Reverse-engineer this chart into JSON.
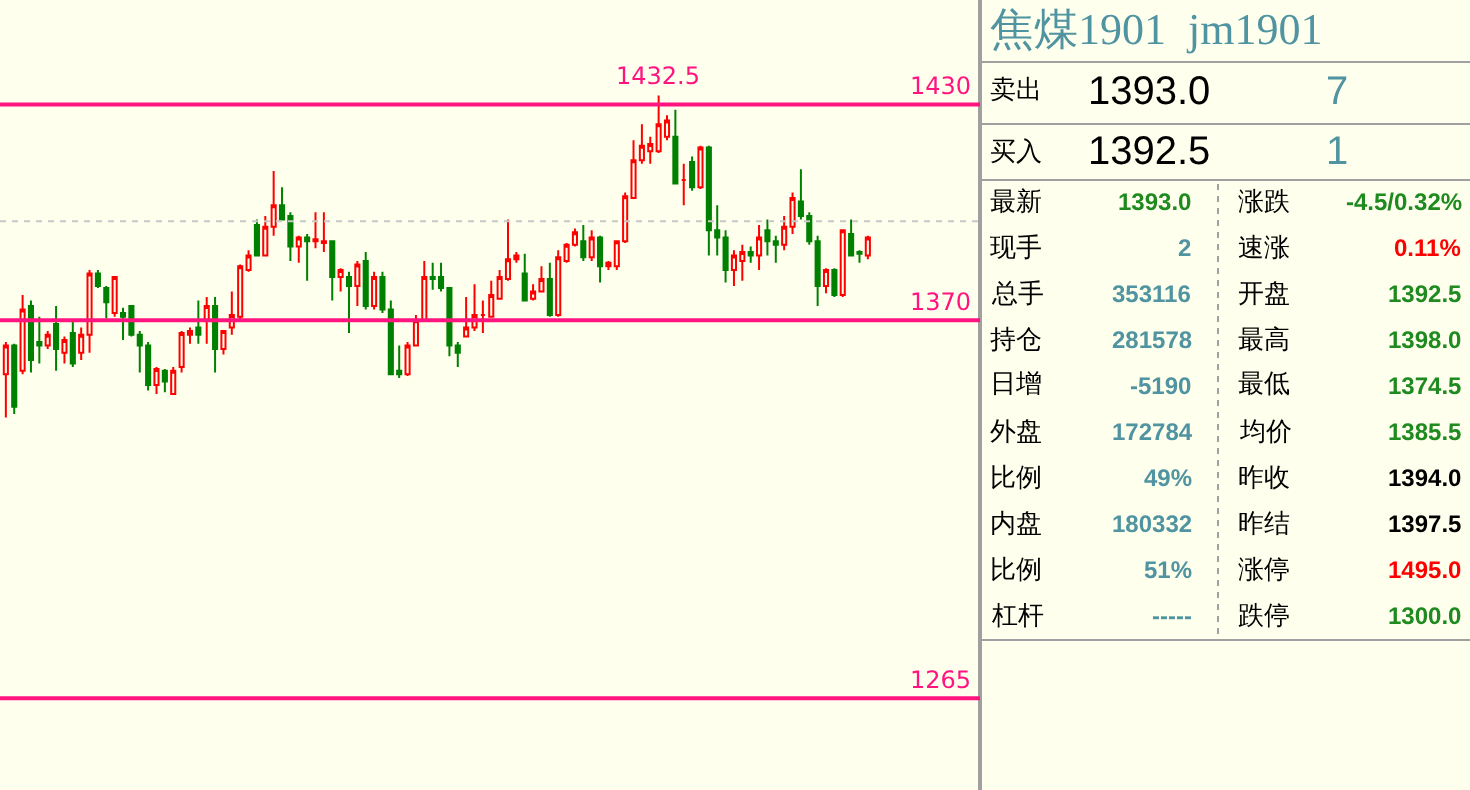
{
  "chart_data": [
    {
      "type": "candlestick",
      "categories": [
        null,
        null,
        null,
        null,
        null,
        null,
        null,
        null,
        null,
        null,
        null,
        null,
        null,
        null,
        null,
        null,
        null,
        null,
        null,
        null,
        null,
        null,
        null,
        null,
        null,
        null,
        null,
        null,
        null,
        null,
        null,
        null,
        null,
        null,
        null,
        null,
        null,
        null,
        null,
        null,
        null,
        null,
        null,
        null,
        null,
        null,
        null,
        null,
        null,
        null,
        null,
        null,
        null,
        null,
        null,
        null,
        null,
        null,
        null,
        null,
        null,
        null,
        null,
        null,
        null,
        null,
        null,
        null,
        null,
        null,
        null,
        null,
        null,
        null,
        null,
        null,
        null,
        null,
        null,
        null,
        null,
        null,
        null,
        null,
        null,
        null,
        null,
        null,
        null,
        null,
        null,
        null,
        null,
        null,
        null,
        null,
        null,
        null,
        null,
        null,
        null,
        null,
        null,
        null
      ],
      "ohlc": [
        [
          1355,
          1364,
          1343,
          1363
        ],
        [
          1363,
          1363.5,
          1344,
          1346
        ],
        [
          1356,
          1377,
          1355,
          1373
        ],
        [
          1374,
          1375.5,
          1355.5,
          1359
        ],
        [
          1364,
          1371,
          1358,
          1363
        ],
        [
          1363,
          1367,
          1362,
          1366
        ],
        [
          1369,
          1374,
          1356,
          1362
        ],
        [
          1361,
          1365.5,
          1358,
          1364.5
        ],
        [
          1366.5,
          1370,
          1357,
          1358
        ],
        [
          1361,
          1368,
          1359,
          1366
        ],
        [
          1366,
          1384,
          1361,
          1383
        ],
        [
          1383,
          1384,
          1379,
          1379.5
        ],
        [
          1379,
          1379.5,
          1370.5,
          1375
        ],
        [
          1372,
          1382,
          1371,
          1382
        ],
        [
          1372,
          1373.5,
          1364.5,
          1371
        ],
        [
          1374,
          1374,
          1365.5,
          1366
        ],
        [
          1366,
          1367,
          1355.5,
          1363
        ],
        [
          1363,
          1364,
          1350.5,
          1352
        ],
        [
          1352,
          1357,
          1349.5,
          1356.5
        ],
        [
          1356,
          1356.5,
          1350,
          1353
        ],
        [
          1349.5,
          1357,
          1349.5,
          1356
        ],
        [
          1357,
          1367,
          1355.5,
          1366.5
        ],
        [
          1366,
          1368,
          1363.5,
          1367
        ],
        [
          1368,
          1375.5,
          1363.5,
          1366
        ],
        [
          1370,
          1376.5,
          1363.5,
          1374
        ],
        [
          1374,
          1376.5,
          1355.5,
          1362
        ],
        [
          1362,
          1367,
          1360.5,
          1367
        ],
        [
          1368,
          1378,
          1366,
          1371.5
        ],
        [
          1371,
          1385.5,
          1370,
          1385
        ],
        [
          1384,
          1389.5,
          1383.5,
          1388
        ],
        [
          1396.5,
          1398,
          1388,
          1388
        ],
        [
          1388,
          1399,
          1388,
          1396
        ],
        [
          1396,
          1411.5,
          1393.5,
          1402
        ],
        [
          1402,
          1407,
          1398,
          1398
        ],
        [
          1399,
          1400,
          1386.5,
          1390.5
        ],
        [
          1390.5,
          1393.5,
          1386,
          1393
        ],
        [
          1393,
          1394,
          1381,
          1392
        ],
        [
          1392,
          1400,
          1390,
          1392.5
        ],
        [
          1391.5,
          1400,
          1389,
          1392
        ],
        [
          1392,
          1392,
          1375.5,
          1382
        ],
        [
          1382,
          1384.5,
          1378,
          1384
        ],
        [
          1382,
          1383.5,
          1366.5,
          1379.5
        ],
        [
          1379.5,
          1386.5,
          1374,
          1385.5
        ],
        [
          1386.5,
          1389,
          1373,
          1374
        ],
        [
          1374,
          1383.5,
          1373,
          1382
        ],
        [
          1382,
          1383.5,
          1372,
          1373
        ],
        [
          1373,
          1375.5,
          1355,
          1355
        ],
        [
          1356,
          1363,
          1354,
          1355
        ],
        [
          1355,
          1364,
          1354.5,
          1363
        ],
        [
          1363,
          1371.5,
          1363,
          1370
        ],
        [
          1370,
          1386.5,
          1369.5,
          1382
        ],
        [
          1382,
          1386,
          1378.5,
          1381.5
        ],
        [
          1382,
          1386,
          1378,
          1379
        ],
        [
          1379,
          1379,
          1360,
          1363
        ],
        [
          1363,
          1364,
          1357,
          1361
        ],
        [
          1365.5,
          1376.5,
          1365.5,
          1368
        ],
        [
          1368,
          1380,
          1367,
          1371.5
        ],
        [
          1371.5,
          1375.5,
          1366.5,
          1371.5
        ],
        [
          1371,
          1381,
          1371,
          1377
        ],
        [
          1376,
          1384,
          1376,
          1382
        ],
        [
          1381.5,
          1398,
          1381,
          1387
        ],
        [
          1387,
          1389,
          1386,
          1388
        ],
        [
          1383,
          1388.5,
          1375.5,
          1375.5
        ],
        [
          1376,
          1380,
          1375.5,
          1378
        ],
        [
          1378,
          1385,
          1378,
          1381.5
        ],
        [
          1381.5,
          1386,
          1371,
          1371.5
        ],
        [
          1371.5,
          1389.5,
          1371,
          1387.5
        ],
        [
          1386.5,
          1391.5,
          1386,
          1391
        ],
        [
          1391,
          1395.5,
          1390.5,
          1394.5
        ],
        [
          1392,
          1396.5,
          1386.5,
          1387.5
        ],
        [
          1387.5,
          1395,
          1386.5,
          1393
        ],
        [
          1393,
          1393.5,
          1380.5,
          1385
        ],
        [
          1385,
          1386.5,
          1384,
          1386
        ],
        [
          1385,
          1392,
          1384,
          1392
        ],
        [
          1392,
          1405.5,
          1391.5,
          1404.5
        ],
        [
          1404,
          1420,
          1404,
          1414.5
        ],
        [
          1414.5,
          1424.5,
          1413.5,
          1418.5
        ],
        [
          1417,
          1421,
          1413.5,
          1419
        ],
        [
          1417,
          1432.5,
          1416.5,
          1424.5
        ],
        [
          1421,
          1427,
          1420,
          1425.5
        ],
        [
          1421,
          1428.5,
          1408,
          1408
        ],
        [
          1409,
          1413.5,
          1402,
          1409
        ],
        [
          1414,
          1415.5,
          1406,
          1407
        ],
        [
          1407,
          1418.5,
          1406.5,
          1418
        ],
        [
          1418,
          1418.5,
          1388,
          1395
        ],
        [
          1395,
          1402,
          1388,
          1393
        ],
        [
          1393,
          1395,
          1380.5,
          1384
        ],
        [
          1384,
          1389.5,
          1379.5,
          1388
        ],
        [
          1386.5,
          1391,
          1381,
          1389
        ],
        [
          1389,
          1390.5,
          1386,
          1388
        ],
        [
          1388,
          1396.5,
          1384,
          1393
        ],
        [
          1395,
          1398,
          1388,
          1392
        ],
        [
          1392,
          1393.5,
          1386,
          1391
        ],
        [
          1391,
          1399,
          1389.5,
          1396
        ],
        [
          1396,
          1405.5,
          1394,
          1404
        ],
        [
          1403,
          1412,
          1398,
          1399
        ],
        [
          1399,
          1400,
          1391,
          1392
        ],
        [
          1392,
          1393.5,
          1374,
          1379.5
        ],
        [
          1379.5,
          1384.5,
          1377.5,
          1384
        ],
        [
          1384,
          1384.5,
          1376.5,
          1377
        ],
        [
          1377,
          1395,
          1376.5,
          1395
        ],
        [
          1394,
          1398,
          1388,
          1388
        ],
        [
          1389,
          1389.5,
          1386,
          1388.5
        ],
        [
          1388,
          1393.5,
          1387,
          1393
        ]
      ],
      "ylim": [
        1239.5,
        1459
      ],
      "tick_labels": false,
      "grid": false,
      "annotations": [
        {
          "text": "1432.5",
          "y": 1432.5
        }
      ],
      "ref_lines": [
        {
          "axis": "y",
          "value": 1430,
          "label": "1430",
          "color": "#ff1480",
          "line_style": "solid"
        },
        {
          "axis": "y",
          "value": 1370,
          "label": "1370",
          "color": "#ff1480",
          "line_style": "solid"
        },
        {
          "axis": "y",
          "value": 1265,
          "label": "1265",
          "color": "#ff1480",
          "line_style": "solid"
        },
        {
          "axis": "y",
          "value": 1397.5,
          "color": "#c8c8c8",
          "line_style": "dotted"
        }
      ]
    },
    {
      "type": "other",
      "title": "焦煤1901  jm1901",
      "categories": [
        "卖出",
        "买入",
        "最新",
        "现手",
        "总手",
        "持仓",
        "日增",
        "外盘",
        "比例",
        "内盘",
        "比例",
        "杠杆",
        "涨跌",
        "速涨",
        "开盘",
        "最高",
        "最低",
        "均价",
        "昨收",
        "昨结",
        "涨停",
        "跌停"
      ],
      "value_labels": [
        "1393.0",
        "1392.5",
        "1393.0",
        "2",
        "353116",
        "281578",
        "-5190",
        "172784",
        "49%",
        "180332",
        "51%",
        "-----",
        "-4.5/0.32%",
        "0.11%",
        "1392.5",
        "1398.0",
        "1374.5",
        "1385.5",
        "1394.0",
        "1397.5",
        "1495.0",
        "1300.0"
      ],
      "colors": [
        "#000000",
        "#000000",
        "#1f8a1f",
        "#4f94a0",
        "#4f94a0",
        "#4f94a0",
        "#4f94a0",
        "#4f94a0",
        "#4f94a0",
        "#4f94a0",
        "#4f94a0",
        "#4f94a0",
        "#1f8a1f",
        "#ff0000",
        "#1f8a1f",
        "#1f8a1f",
        "#1f8a1f",
        "#1f8a1f",
        "#000000",
        "#000000",
        "#ff0000",
        "#1f8a1f"
      ],
      "annotations": [
        "7",
        "1"
      ]
    }
  ]
}
